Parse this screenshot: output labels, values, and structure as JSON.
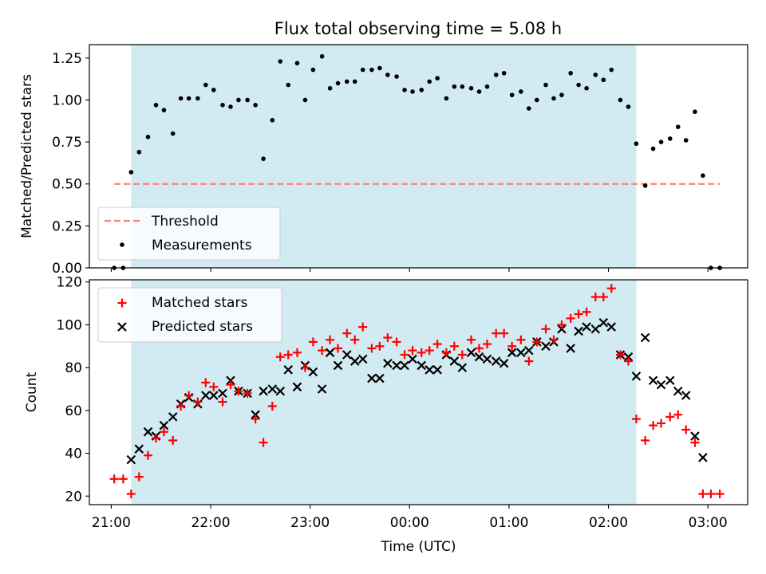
{
  "chart_data": {
    "title": "Flux total observing time = 5.08 h",
    "xlabel": "Time (UTC)",
    "x_tick_labels": [
      "21:00",
      "22:00",
      "23:00",
      "00:00",
      "01:00",
      "02:00",
      "03:00"
    ],
    "x_tick_hours": [
      21,
      22,
      23,
      24,
      25,
      26,
      27
    ],
    "xlim_hours": [
      20.78,
      27.4
    ],
    "observing_window_hours": [
      21.2,
      26.28
    ],
    "window_color": "#add8e6",
    "panels": [
      {
        "type": "scatter",
        "ylabel": "Matched/Predicted stars",
        "ylim": [
          0,
          1.33
        ],
        "yticks": [
          0.0,
          0.25,
          0.5,
          0.75,
          1.0,
          1.25
        ],
        "ytick_labels": [
          "0.00",
          "0.25",
          "0.50",
          "0.75",
          "1.00",
          "1.25"
        ],
        "legend_position": "lower-left",
        "threshold": {
          "name": "Threshold",
          "value": 0.5,
          "x_range": [
            21.03,
            27.12
          ],
          "color": "#ff7f7f"
        },
        "series": [
          {
            "name": "Measurements",
            "marker": "dot",
            "color": "#000000",
            "x": [
              21.03,
              21.12,
              21.2,
              21.28,
              21.37,
              21.45,
              21.53,
              21.62,
              21.7,
              21.78,
              21.87,
              21.95,
              22.03,
              22.12,
              22.2,
              22.28,
              22.37,
              22.45,
              22.53,
              22.62,
              22.7,
              22.78,
              22.87,
              22.95,
              23.03,
              23.12,
              23.2,
              23.28,
              23.37,
              23.45,
              23.53,
              23.62,
              23.7,
              23.78,
              23.87,
              23.95,
              24.03,
              24.12,
              24.2,
              24.28,
              24.37,
              24.45,
              24.53,
              24.62,
              24.7,
              24.78,
              24.87,
              24.95,
              25.03,
              25.12,
              25.2,
              25.28,
              25.37,
              25.45,
              25.53,
              25.62,
              25.7,
              25.78,
              25.87,
              25.95,
              26.03,
              26.12,
              26.2,
              26.28,
              26.37,
              26.45,
              26.53,
              26.62,
              26.7,
              26.78,
              26.87,
              26.95,
              27.03,
              27.12
            ],
            "y": [
              0,
              0,
              0.57,
              0.69,
              0.78,
              0.97,
              0.94,
              0.8,
              1.01,
              1.01,
              1.01,
              1.09,
              1.06,
              0.97,
              0.96,
              1.0,
              1.0,
              0.97,
              0.65,
              0.88,
              1.23,
              1.09,
              1.22,
              1.0,
              1.18,
              1.26,
              1.07,
              1.1,
              1.11,
              1.11,
              1.18,
              1.18,
              1.19,
              1.15,
              1.14,
              1.06,
              1.05,
              1.06,
              1.11,
              1.13,
              1.01,
              1.08,
              1.08,
              1.07,
              1.05,
              1.08,
              1.15,
              1.16,
              1.03,
              1.05,
              0.95,
              1.0,
              1.09,
              1.01,
              1.03,
              1.16,
              1.09,
              1.07,
              1.15,
              1.12,
              1.18,
              1.0,
              0.96,
              0.74,
              0.49,
              0.71,
              0.75,
              0.77,
              0.84,
              0.76,
              0.93,
              0.55,
              0,
              0
            ]
          }
        ]
      },
      {
        "type": "scatter",
        "ylabel": "Count",
        "ylim": [
          16,
          121
        ],
        "yticks": [
          20,
          40,
          60,
          80,
          100,
          120
        ],
        "ytick_labels": [
          "20",
          "40",
          "60",
          "80",
          "100",
          "120"
        ],
        "legend_position": "upper-left",
        "series": [
          {
            "name": "Matched stars",
            "marker": "plus",
            "color": "#ff0000",
            "x": [
              21.03,
              21.12,
              21.2,
              21.28,
              21.37,
              21.45,
              21.53,
              21.62,
              21.7,
              21.78,
              21.87,
              21.95,
              22.03,
              22.12,
              22.2,
              22.28,
              22.37,
              22.45,
              22.53,
              22.62,
              22.7,
              22.78,
              22.87,
              22.95,
              23.03,
              23.12,
              23.2,
              23.28,
              23.37,
              23.45,
              23.53,
              23.62,
              23.7,
              23.78,
              23.87,
              23.95,
              24.03,
              24.12,
              24.2,
              24.28,
              24.37,
              24.45,
              24.53,
              24.62,
              24.7,
              24.78,
              24.87,
              24.95,
              25.03,
              25.12,
              25.2,
              25.28,
              25.37,
              25.45,
              25.53,
              25.62,
              25.7,
              25.78,
              25.87,
              25.95,
              26.03,
              26.12,
              26.2,
              26.28,
              26.37,
              26.45,
              26.53,
              26.62,
              26.7,
              26.78,
              26.87,
              26.95,
              27.03,
              27.12
            ],
            "y": [
              28,
              28,
              21,
              29,
              39,
              47,
              50,
              46,
              62,
              67,
              64,
              73,
              71,
              64,
              72,
              69,
              68,
              56,
              45,
              62,
              85,
              86,
              87,
              80,
              92,
              88,
              93,
              89,
              96,
              93,
              99,
              89,
              90,
              94,
              92,
              86,
              88,
              87,
              88,
              91,
              87,
              90,
              86,
              93,
              89,
              91,
              96,
              96,
              90,
              93,
              83,
              92,
              98,
              93,
              100,
              103,
              105,
              106,
              113,
              113,
              117,
              86,
              83,
              56,
              46,
              53,
              54,
              57,
              58,
              51,
              45,
              21,
              21,
              21
            ]
          },
          {
            "name": "Predicted stars",
            "marker": "x",
            "color": "#000000",
            "x": [
              21.2,
              21.28,
              21.37,
              21.45,
              21.53,
              21.62,
              21.7,
              21.78,
              21.87,
              21.95,
              22.03,
              22.12,
              22.2,
              22.28,
              22.37,
              22.45,
              22.53,
              22.62,
              22.7,
              22.78,
              22.87,
              22.95,
              23.03,
              23.12,
              23.2,
              23.28,
              23.37,
              23.45,
              23.53,
              23.62,
              23.7,
              23.78,
              23.87,
              23.95,
              24.03,
              24.12,
              24.2,
              24.28,
              24.37,
              24.45,
              24.53,
              24.62,
              24.7,
              24.78,
              24.87,
              24.95,
              25.03,
              25.12,
              25.2,
              25.28,
              25.37,
              25.45,
              25.53,
              25.62,
              25.7,
              25.78,
              25.87,
              25.95,
              26.03,
              26.12,
              26.2,
              26.28,
              26.37,
              26.45,
              26.53,
              26.62,
              26.7,
              26.78,
              26.87,
              26.95
            ],
            "y": [
              37,
              42,
              50,
              48,
              53,
              57,
              63,
              66,
              63,
              67,
              67,
              68,
              74,
              69,
              68,
              58,
              69,
              70,
              69,
              79,
              71,
              81,
              78,
              70,
              87,
              81,
              86,
              83,
              84,
              75,
              75,
              82,
              81,
              81,
              84,
              81,
              79,
              79,
              86,
              83,
              80,
              87,
              85,
              84,
              83,
              82,
              87,
              87,
              88,
              92,
              90,
              92,
              98,
              89,
              97,
              99,
              98,
              101,
              99,
              86,
              85,
              76,
              94,
              74,
              72,
              74,
              69,
              67,
              48,
              38
            ]
          }
        ]
      }
    ]
  }
}
